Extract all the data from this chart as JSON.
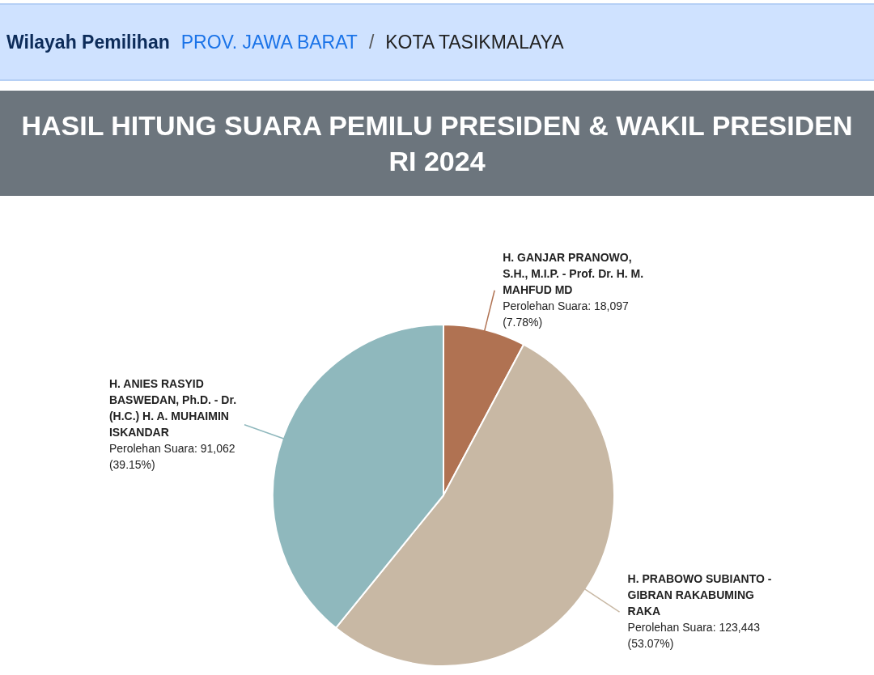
{
  "chart_data": {
    "type": "pie",
    "title": "HASIL HITUNG SUARA PEMILU PRESIDEN & WAKIL PRESIDEN RI 2024",
    "annotations": [
      "Wilayah Pemilihan",
      "PROV. JAWA BARAT",
      "/",
      "KOTA TASIKMALAYA"
    ],
    "categories": [
      "H. GANJAR PRANOWO, S.H., M.I.P. - Prof. Dr. H. M. MAHFUD MD",
      "H. PRABOWO SUBIANTO - GIBRAN RAKABUMING RAKA",
      "H. ANIES RASYID BASWEDAN, Ph.D. - Dr. (H.C.) H. A. MUHAIMIN ISKANDAR"
    ],
    "values": [
      18097,
      123443,
      91062
    ],
    "colors": [
      "#b07252",
      "#c8b8a4",
      "#8fb8bd"
    ],
    "value_labels": [
      "Perolehan Suara: 18,097 (7.78%)",
      "Perolehan Suara: 123,443 (53.07%)",
      "Perolehan Suara: 91,062 (39.15%)"
    ]
  }
}
